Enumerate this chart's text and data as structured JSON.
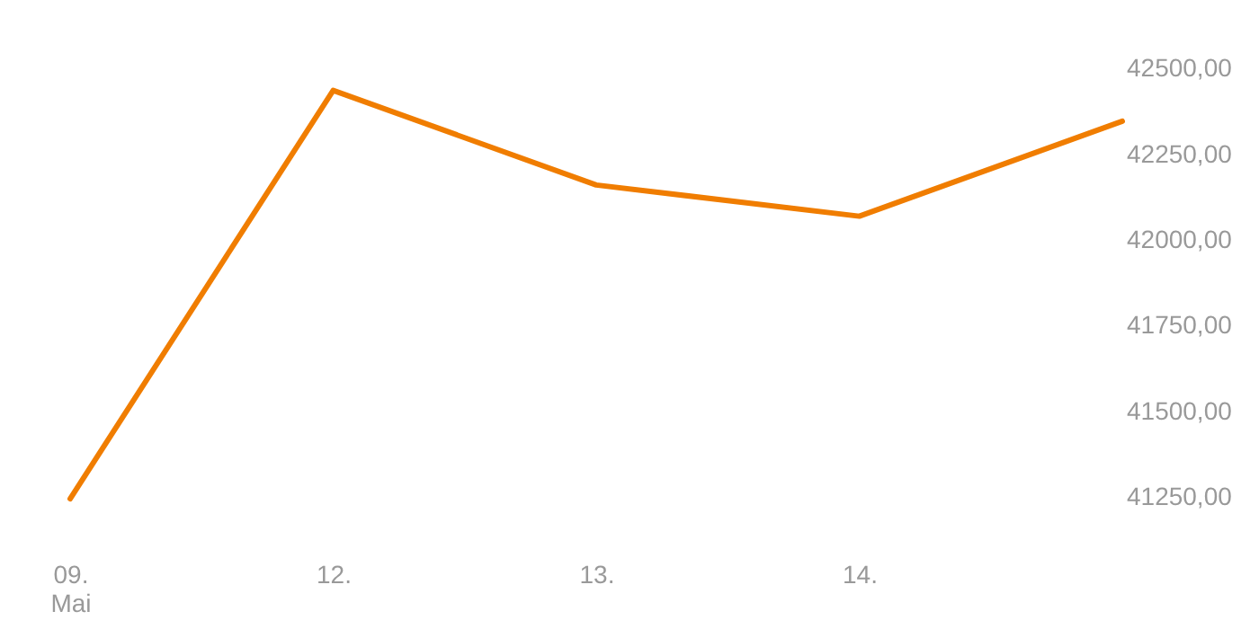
{
  "chart_data": {
    "type": "line",
    "categories": [
      "09. Mai",
      "12.",
      "13.",
      "14.",
      null
    ],
    "series": [
      {
        "color": "#f07d00",
        "values": [
          41245,
          42436,
          42160,
          42069,
          42346
        ]
      }
    ],
    "ylim": [
      40865,
      42600
    ],
    "yticks": [
      {
        "value": 41250,
        "label": "41250,00"
      },
      {
        "value": 41500,
        "label": "41500,00"
      },
      {
        "value": 41750,
        "label": "41750,00"
      },
      {
        "value": 42000,
        "label": "42000,00"
      },
      {
        "value": 42250,
        "label": "42250,00"
      },
      {
        "value": 42500,
        "label": "42500,00"
      }
    ],
    "grid": false,
    "marker": "none",
    "line_style": "solid"
  }
}
